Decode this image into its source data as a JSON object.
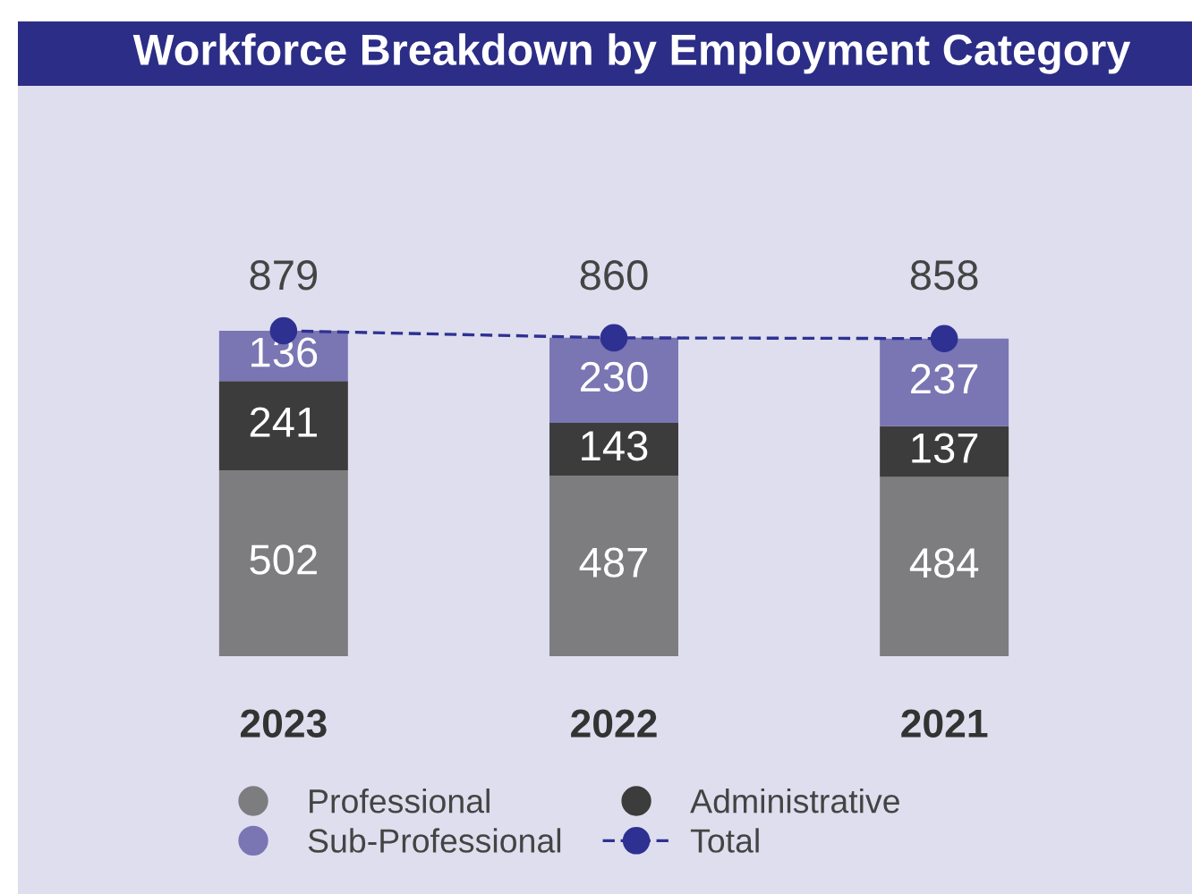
{
  "chart_data": {
    "type": "bar",
    "title": "Workforce Breakdown by Employment Category",
    "categories": [
      "2023",
      "2022",
      "2021"
    ],
    "series": [
      {
        "name": "Professional",
        "color": "#7d7d80",
        "values": [
          502,
          487,
          484
        ],
        "value_labels": [
          "502",
          "487",
          "484"
        ]
      },
      {
        "name": "Administrative",
        "color": "#3c3c3c",
        "values": [
          241,
          143,
          137
        ],
        "value_labels": [
          "241",
          "143",
          "137"
        ]
      },
      {
        "name": "Sub-Professional",
        "color": "#7a75b3",
        "values": [
          136,
          230,
          237
        ],
        "value_labels": [
          "136",
          "230",
          "237"
        ]
      },
      {
        "name": "Total",
        "type": "line",
        "color": "#2e3192",
        "values": [
          879,
          860,
          858
        ]
      }
    ],
    "stacked": true,
    "totals": [
      "879",
      "860",
      "858"
    ],
    "tick_labels": "x",
    "marker": "circle",
    "line_style": "dashed",
    "legend": "bottom"
  }
}
